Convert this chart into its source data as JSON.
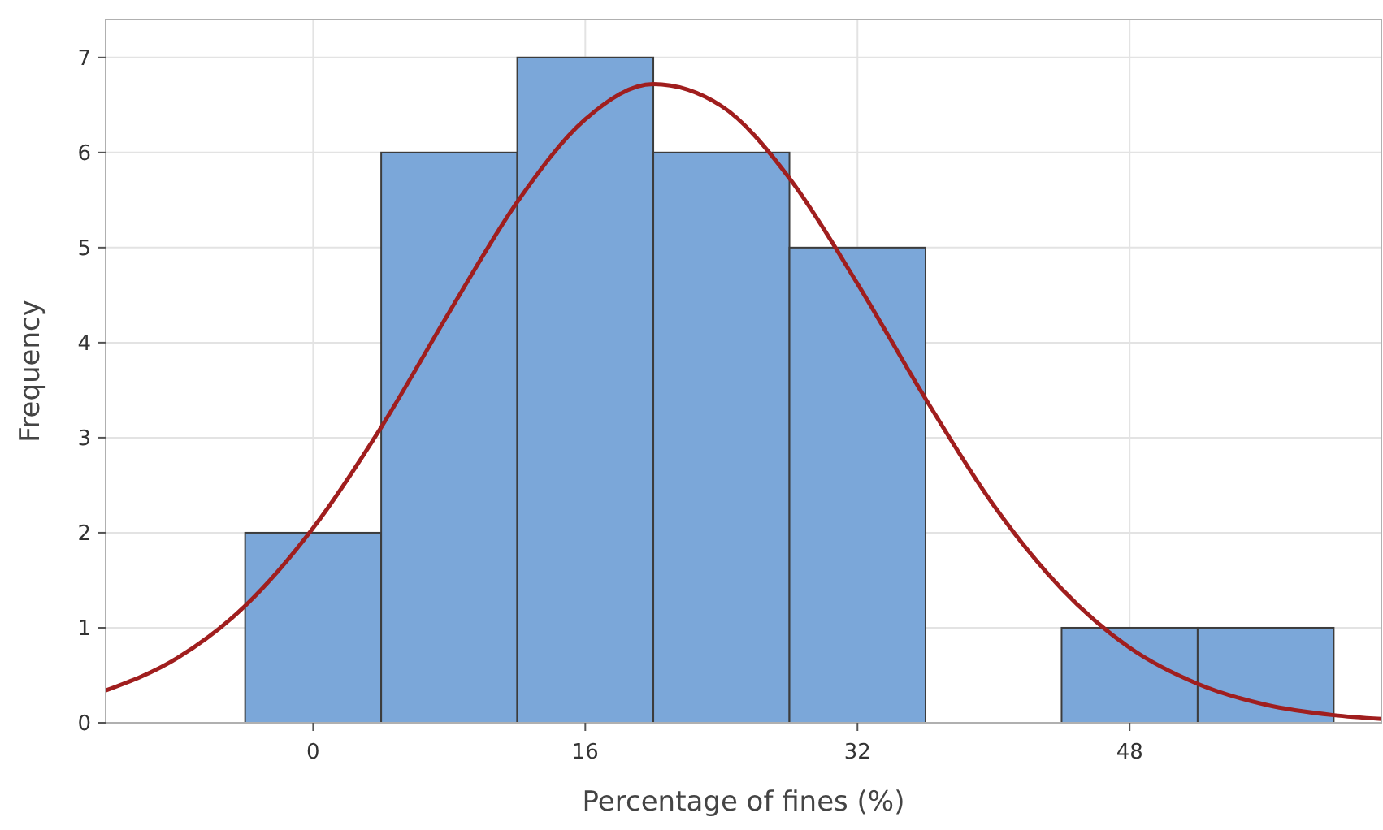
{
  "chart_data": {
    "type": "histogram",
    "xlabel": "Percentage of fines (%)",
    "ylabel": "Frequency",
    "bins": [
      -4,
      4,
      12,
      20,
      28,
      36,
      44,
      52,
      60
    ],
    "values": [
      2,
      6,
      7,
      6,
      5,
      0,
      1,
      1
    ],
    "color": "#7ba7d9",
    "series": [
      {
        "type": "line",
        "color": "#a01e1e",
        "x": [
          -12.2,
          -8,
          -4,
          0,
          4,
          8,
          12,
          16,
          20,
          24,
          28,
          32,
          36,
          40,
          44,
          48,
          52,
          56,
          60,
          62.8
        ],
        "values": [
          0.34,
          0.68,
          1.23,
          2.05,
          3.11,
          4.32,
          5.48,
          6.35,
          6.72,
          6.49,
          5.73,
          4.62,
          3.41,
          2.29,
          1.41,
          0.79,
          0.41,
          0.19,
          0.08,
          0.04
        ]
      }
    ],
    "xlim": [
      -12.2,
      62.8
    ],
    "xticks": [
      0,
      16,
      32,
      48
    ],
    "ylim": [
      0,
      7.4
    ],
    "yticks": [
      0,
      1,
      2,
      3,
      4,
      5,
      6,
      7
    ],
    "grid": true
  }
}
